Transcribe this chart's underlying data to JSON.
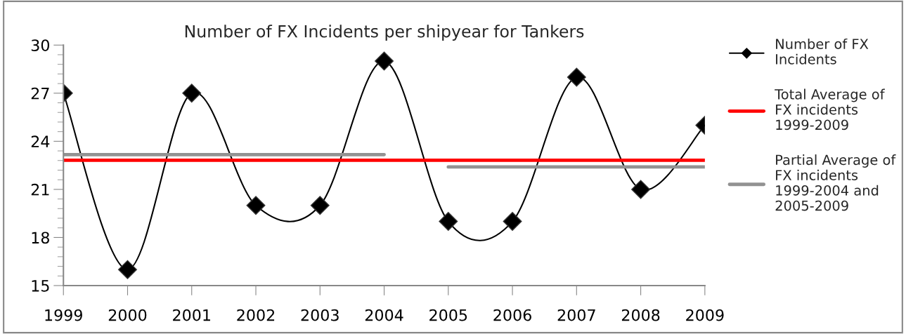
{
  "chart_data": {
    "type": "line",
    "title": "Number of FX Incidents per shipyear for Tankers",
    "x": [
      1999,
      2000,
      2001,
      2002,
      2003,
      2004,
      2005,
      2006,
      2007,
      2008,
      2009
    ],
    "series": [
      {
        "name": "Number of FX Incidents",
        "color": "#000000",
        "values": [
          27,
          16,
          27,
          20,
          20,
          29,
          19,
          19,
          28,
          21,
          25
        ],
        "marker": "diamond"
      },
      {
        "name": "Total Average of FX incidents 1999-2009",
        "color": "#ff0000",
        "x": [
          1999,
          2009
        ],
        "values": [
          22.82,
          22.82
        ],
        "marker": "none"
      },
      {
        "name": "Partial Average of FX incidents 1999-2004 and 2005-2009",
        "color": "#929292",
        "x": [
          1999,
          2004,
          2004.5,
          2005,
          2009
        ],
        "values": [
          23.17,
          23.17,
          null,
          22.4,
          22.4
        ],
        "marker": "none"
      }
    ],
    "xlim": [
      1999,
      2009
    ],
    "xticks": [
      1999,
      2000,
      2001,
      2002,
      2003,
      2004,
      2005,
      2006,
      2007,
      2008,
      2009
    ],
    "ylim": [
      15,
      30
    ],
    "yticks": [
      15,
      18,
      21,
      24,
      27,
      30
    ],
    "grid": false,
    "legend": "right"
  }
}
